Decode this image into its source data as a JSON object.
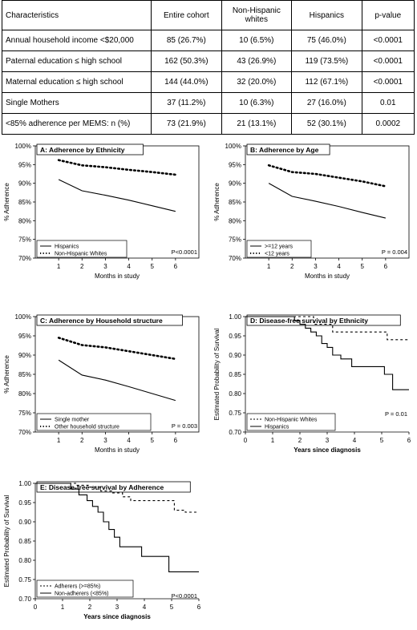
{
  "table": {
    "headers": [
      "Characteristics",
      "Entire cohort",
      "Non-Hispanic whites",
      "Hispanics",
      "p-value"
    ],
    "rows": [
      [
        "Annual household income <$20,000",
        "85 (26.7%)",
        "10 (6.5%)",
        "75 (46.0%)",
        "<0.0001"
      ],
      [
        "Paternal education ≤ high school",
        "162 (50.3%)",
        "43 (26.9%)",
        "119 (73.5%)",
        "<0.0001"
      ],
      [
        "Maternal education ≤ high school",
        "144 (44.0%)",
        "32 (20.0%)",
        "112 (67.1%)",
        "<0.0001"
      ],
      [
        "Single Mothers",
        "37 (11.2%)",
        "10 (6.3%)",
        "27 (16.0%)",
        "0.01"
      ],
      [
        "<85% adherence per MEMS: n (%)",
        "73 (21.9%)",
        "21 (13.1%)",
        "52 (30.1%)",
        "0.0002"
      ]
    ]
  },
  "chart_data": [
    {
      "type": "line",
      "title": "A: Adherence by Ethnicity",
      "xlabel": "Months in study",
      "ylabel": "% Adherence",
      "x": [
        1,
        2,
        3,
        4,
        5,
        6
      ],
      "xlim": [
        0,
        7
      ],
      "ylim": [
        70,
        100
      ],
      "ytick_labels": [
        "70%",
        "75%",
        "80%",
        "85%",
        "90%",
        "95%",
        "100%"
      ],
      "legend_position": "bottom-left",
      "annotation": "P<0.0001",
      "series": [
        {
          "name": "Hispanics",
          "style": "solid",
          "values": [
            91.0,
            88.0,
            86.8,
            85.5,
            84.0,
            82.5
          ]
        },
        {
          "name": "Non-Hispanic Whites",
          "style": "dotted",
          "values": [
            96.2,
            94.8,
            94.3,
            93.6,
            93.0,
            92.3
          ]
        }
      ]
    },
    {
      "type": "line",
      "title": "B: Adherence by Age",
      "xlabel": "Months in study",
      "ylabel": "% Adherence",
      "x": [
        1,
        2,
        3,
        4,
        5,
        6
      ],
      "xlim": [
        0,
        7
      ],
      "ylim": [
        70,
        100
      ],
      "ytick_labels": [
        "70%",
        "75%",
        "80%",
        "85%",
        "90%",
        "95%",
        "100%"
      ],
      "legend_position": "bottom-left",
      "annotation": "P = 0.004",
      "series": [
        {
          "name": ">=12 years",
          "style": "solid",
          "values": [
            90.0,
            86.5,
            85.2,
            83.8,
            82.2,
            80.7
          ]
        },
        {
          "name": "<12 years",
          "style": "dotted",
          "values": [
            94.8,
            93.0,
            92.5,
            91.5,
            90.5,
            89.2
          ]
        }
      ]
    },
    {
      "type": "line",
      "title": "C: Adherence by Household structure",
      "xlabel": "Months in study",
      "ylabel": "% Adherence",
      "x": [
        1,
        2,
        3,
        4,
        5,
        6
      ],
      "xlim": [
        0,
        7
      ],
      "ylim": [
        70,
        100
      ],
      "ytick_labels": [
        "70%",
        "75%",
        "80%",
        "85%",
        "90%",
        "95%",
        "100%"
      ],
      "legend_position": "bottom-left",
      "annotation": "P = 0.003",
      "series": [
        {
          "name": "Single mother",
          "style": "solid",
          "values": [
            88.7,
            84.8,
            83.5,
            81.8,
            80.0,
            78.2
          ]
        },
        {
          "name": "Other household structure",
          "style": "dotted",
          "values": [
            94.5,
            92.6,
            92.0,
            91.0,
            90.0,
            89.0
          ]
        }
      ]
    },
    {
      "type": "line",
      "step": true,
      "title": "D: Disease-free survival by Ethnicity",
      "xlabel": "Years since diagnosis",
      "ylabel": "Estimated Probability of Survival",
      "xlim": [
        0,
        6
      ],
      "ylim": [
        0.7,
        1.0
      ],
      "ytick_labels": [
        "0.70",
        "0.75",
        "0.80",
        "0.85",
        "0.90",
        "0.95",
        "1.00"
      ],
      "xtick_labels": [
        "0",
        "1",
        "2",
        "3",
        "4",
        "5",
        "6"
      ],
      "legend_position": "bottom-left",
      "annotation": "P = 0.01",
      "series": [
        {
          "name": "Non-Hispanic Whites",
          "style": "dashed",
          "x": [
            0,
            2.5,
            3.2,
            5.2,
            6.0
          ],
          "values": [
            1.0,
            0.98,
            0.96,
            0.94,
            0.94
          ]
        },
        {
          "name": "Hispanics",
          "style": "solid",
          "x": [
            0,
            1.8,
            2.0,
            2.2,
            2.4,
            2.6,
            2.8,
            3.0,
            3.2,
            3.5,
            3.9,
            4.1,
            5.1,
            5.4,
            6.0
          ],
          "values": [
            1.0,
            0.99,
            0.98,
            0.97,
            0.96,
            0.95,
            0.93,
            0.92,
            0.9,
            0.89,
            0.87,
            0.87,
            0.85,
            0.81,
            0.81
          ]
        }
      ]
    },
    {
      "type": "line",
      "step": true,
      "title": "E: Disease-free survival by Adherence",
      "xlabel": "Years since diagnosis",
      "ylabel": "Estimated Probability of Survival",
      "xlim": [
        0,
        6
      ],
      "ylim": [
        0.7,
        1.0
      ],
      "ytick_labels": [
        "0.70",
        "0.75",
        "0.80",
        "0.85",
        "0.90",
        "0.95",
        "1.00"
      ],
      "xtick_labels": [
        "0",
        "1",
        "2",
        "3",
        "4",
        "5",
        "6"
      ],
      "legend_position": "bottom-left",
      "annotation": "P<0.0001",
      "series": [
        {
          "name": "Adherers (>=85%)",
          "style": "dashed",
          "x": [
            0,
            1.5,
            2.0,
            2.4,
            2.8,
            3.2,
            3.5,
            4.0,
            5.1,
            5.5,
            6.0
          ],
          "values": [
            1.0,
            0.995,
            0.99,
            0.98,
            0.975,
            0.965,
            0.955,
            0.955,
            0.93,
            0.925,
            0.925
          ]
        },
        {
          "name": "Non-adherers (<85%)",
          "style": "solid",
          "x": [
            0,
            1.3,
            1.6,
            1.9,
            2.1,
            2.3,
            2.5,
            2.7,
            2.9,
            3.1,
            3.9,
            4.9,
            6.0
          ],
          "values": [
            1.0,
            0.985,
            0.97,
            0.955,
            0.94,
            0.925,
            0.9,
            0.88,
            0.86,
            0.835,
            0.81,
            0.77,
            0.77
          ]
        }
      ]
    }
  ]
}
